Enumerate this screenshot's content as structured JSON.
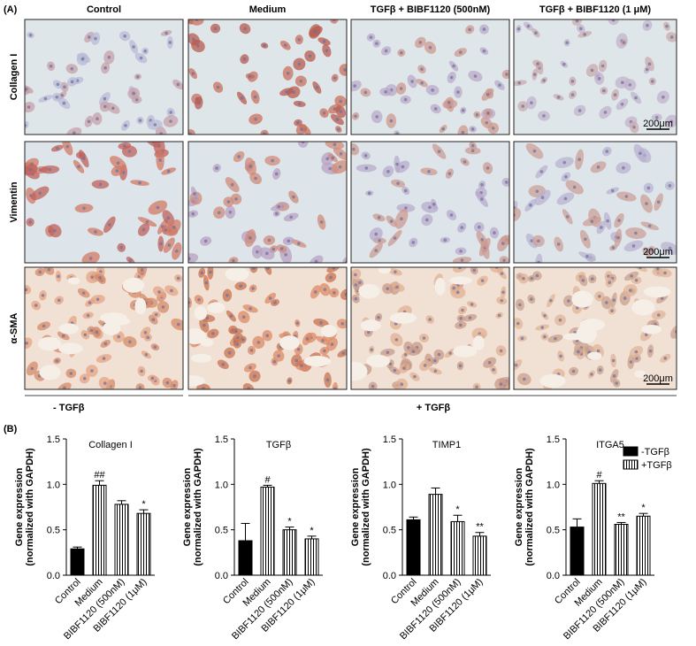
{
  "panel_a": {
    "label": "(A)",
    "columns": [
      "Control",
      "Medium",
      "TGFβ + BIBF1120 (500nM)",
      "TGFβ + BIBF1120 (1 μM)"
    ],
    "rows": [
      "Collagen I",
      "Vimentin",
      "α-SMA"
    ],
    "scale_bar": "200μm",
    "groups": [
      "- TGFβ",
      "+ TGFβ"
    ]
  },
  "panel_b": {
    "label": "(B)"
  },
  "chart_data": [
    {
      "type": "bar",
      "title": "Collagen I",
      "ylabel": [
        "Gene expression",
        "(normalized with GAPDH)"
      ],
      "categories": [
        "Control",
        "Medium",
        "BIBF1120 (500nM)",
        "BIBF1120 (1μM)"
      ],
      "values": [
        0.29,
        0.99,
        0.78,
        0.68
      ],
      "errors": [
        0.02,
        0.05,
        0.04,
        0.04
      ],
      "annotations": [
        null,
        "##",
        null,
        "*"
      ],
      "bar_patterns": [
        "solid",
        "striped",
        "striped",
        "striped"
      ],
      "ylim": [
        0,
        1.5
      ],
      "yticks": [
        {
          "value": 0,
          "label": "0.0"
        },
        0.5,
        {
          "value": 1,
          "label": "1.0"
        },
        1.5
      ]
    },
    {
      "type": "bar",
      "title": "TGFβ",
      "ylabel": [
        "Gene expression",
        "(normalized with GAPDH)"
      ],
      "categories": [
        "Control",
        "Medium",
        "BIBF1120 (500nM)",
        "BIBF1120 (1μM)"
      ],
      "values": [
        0.38,
        0.97,
        0.5,
        0.4
      ],
      "errors": [
        0.19,
        0.02,
        0.03,
        0.03
      ],
      "annotations": [
        null,
        "#",
        "*",
        "*"
      ],
      "bar_patterns": [
        "solid",
        "striped",
        "striped",
        "striped"
      ],
      "ylim": [
        0,
        1.5
      ],
      "yticks": [
        {
          "value": 0,
          "label": "0.0"
        },
        0.5,
        {
          "value": 1,
          "label": "1.0"
        },
        1.5
      ]
    },
    {
      "type": "bar",
      "title": "TIMP1",
      "ylabel": [
        "Gene expression",
        "(normalized with GAPDH)"
      ],
      "categories": [
        "Control",
        "Medium",
        "BIBF1120 (500nM)",
        "BIBF1120 (1μM)"
      ],
      "values": [
        0.61,
        0.89,
        0.59,
        0.43
      ],
      "errors": [
        0.03,
        0.07,
        0.07,
        0.04
      ],
      "annotations": [
        null,
        null,
        "*",
        "**"
      ],
      "bar_patterns": [
        "solid",
        "striped",
        "striped",
        "striped"
      ],
      "ylim": [
        0,
        1.5
      ],
      "yticks": [
        {
          "value": 0,
          "label": "0.0"
        },
        0.5,
        {
          "value": 1,
          "label": "1.0"
        },
        1.5
      ]
    },
    {
      "type": "bar",
      "title": "ITGA5",
      "ylabel": [
        "Gene expression",
        "(normalized with GAPDH)"
      ],
      "categories": [
        "Control",
        "Medium",
        "BIBF1120 (500nM)",
        "BIBF1120 (1μM)"
      ],
      "values": [
        0.53,
        1.01,
        0.56,
        0.65
      ],
      "errors": [
        0.09,
        0.03,
        0.02,
        0.03
      ],
      "annotations": [
        null,
        "#",
        "**",
        "*"
      ],
      "bar_patterns": [
        "solid",
        "striped",
        "striped",
        "striped"
      ],
      "ylim": [
        0,
        1.5
      ],
      "yticks": [
        {
          "value": 0,
          "label": "0.0"
        },
        0.5,
        {
          "value": 1,
          "label": "1.0"
        },
        1.5
      ],
      "legend": [
        {
          "name": "-TGFβ",
          "pattern": "solid"
        },
        {
          "name": "+TGFβ",
          "pattern": "striped"
        }
      ]
    }
  ]
}
